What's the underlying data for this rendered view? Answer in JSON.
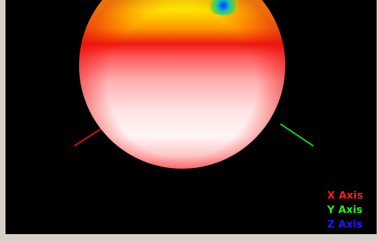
{
  "legend": [
    {
      "label": "X Axis",
      "color": "#ff1a1a"
    },
    {
      "label": "Y Axis",
      "color": "#22ee22"
    },
    {
      "label": "Z Axis",
      "color": "#1a1aff"
    }
  ]
}
